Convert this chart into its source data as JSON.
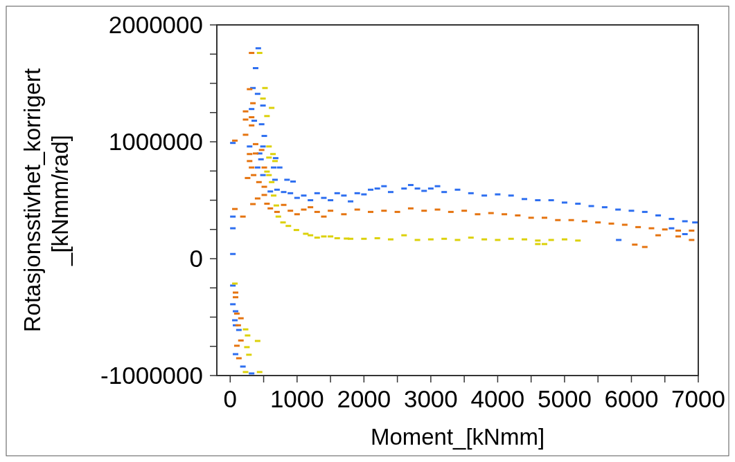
{
  "chart_data": {
    "type": "scatter",
    "xlabel": "Moment_[kNmm]",
    "ylabel": "Rotasjonsstivhet_korrigert\n_[kNmm/rad]",
    "xlim": [
      -200,
      7000
    ],
    "ylim": [
      -1000000,
      2000000
    ],
    "xticks": [
      0,
      {
        "value": 500,
        "label": null
      },
      1000,
      {
        "value": 1500,
        "label": null
      },
      2000,
      {
        "value": 2500,
        "label": null
      },
      3000,
      {
        "value": 3500,
        "label": null
      },
      4000,
      {
        "value": 4500,
        "label": null
      },
      5000,
      {
        "value": 5500,
        "label": null
      },
      6000,
      {
        "value": 6500,
        "label": null
      },
      7000
    ],
    "yticks": [
      -1000000,
      {
        "value": -750000,
        "label": null
      },
      {
        "value": -500000,
        "label": null
      },
      {
        "value": -250000,
        "label": null
      },
      0,
      {
        "value": 250000,
        "label": null
      },
      {
        "value": 500000,
        "label": null
      },
      {
        "value": 750000,
        "label": null
      },
      1000000,
      {
        "value": 1250000,
        "label": null
      },
      {
        "value": 1500000,
        "label": null
      },
      {
        "value": 1750000,
        "label": null
      },
      2000000
    ],
    "grid": false,
    "legend": false,
    "series": [
      {
        "color": "#2e6ff0",
        "x": [
          420,
          380,
          340,
          410,
          490,
          320,
          360,
          470,
          510,
          40,
          290,
          490,
          440,
          460,
          680,
          410,
          650,
          740,
          490,
          670,
          850,
          940,
          40,
          40,
          40,
          40,
          40,
          80,
          70,
          80,
          130,
          80,
          190,
          320,
          600,
          700,
          800,
          900,
          1000,
          1100,
          1200,
          1300,
          1400,
          1500,
          1600,
          1700,
          1800,
          1900,
          2000,
          2100,
          2200,
          2300,
          2400,
          2600,
          2700,
          2800,
          2900,
          3000,
          3100,
          3200,
          3400,
          3600,
          3800,
          4000,
          4200,
          4400,
          4600,
          4800,
          5000,
          5200,
          5400,
          5600,
          5800,
          6000,
          6200,
          6400,
          6600,
          6800,
          6950,
          6600,
          6800,
          5810
        ],
        "values": [
          1800000,
          1630000,
          1460000,
          1410000,
          1310000,
          1280000,
          1180000,
          1150000,
          1050000,
          990000,
          960000,
          960000,
          900000,
          850000,
          860000,
          780000,
          780000,
          780000,
          715000,
          675000,
          675000,
          660000,
          360000,
          260000,
          40000,
          -230000,
          -390000,
          -450000,
          -527000,
          -570000,
          -610000,
          -817000,
          -923000,
          -982000,
          575000,
          590000,
          570000,
          560000,
          520000,
          540000,
          500000,
          560000,
          520000,
          500000,
          560000,
          540000,
          490000,
          560000,
          550000,
          590000,
          600000,
          620000,
          570000,
          600000,
          630000,
          600000,
          580000,
          600000,
          620000,
          570000,
          590000,
          560000,
          540000,
          550000,
          540000,
          510000,
          500000,
          500000,
          480000,
          470000,
          450000,
          440000,
          420000,
          410000,
          400000,
          370000,
          340000,
          320000,
          310000,
          260000,
          210000,
          160000
        ]
      },
      {
        "color": "#e57410",
        "x": [
          320,
          290,
          340,
          230,
          230,
          320,
          320,
          230,
          70,
          380,
          290,
          470,
          380,
          290,
          320,
          510,
          350,
          260,
          430,
          510,
          510,
          410,
          340,
          70,
          190,
          80,
          80,
          100,
          160,
          120,
          160,
          100,
          130,
          550,
          600,
          700,
          800,
          900,
          1000,
          1100,
          1200,
          1300,
          1400,
          1500,
          1700,
          1900,
          2100,
          2300,
          2500,
          2700,
          2900,
          3100,
          3300,
          3500,
          3700,
          3900,
          4100,
          4300,
          4500,
          4700,
          4900,
          5100,
          5300,
          5500,
          5700,
          5900,
          6100,
          6300,
          6500,
          6700,
          6900,
          6400,
          6700,
          6900,
          6050,
          6200
        ],
        "values": [
          1760000,
          1450000,
          1330000,
          1260000,
          1190000,
          1210000,
          1140000,
          1060000,
          1010000,
          980000,
          895000,
          930000,
          900000,
          835000,
          780000,
          780000,
          715000,
          690000,
          655000,
          615000,
          545000,
          515000,
          467000,
          425000,
          360000,
          -290000,
          -330000,
          -470000,
          -510000,
          -570000,
          -700000,
          -745000,
          -852000,
          470000,
          430000,
          400000,
          460000,
          410000,
          380000,
          420000,
          440000,
          400000,
          360000,
          410000,
          380000,
          420000,
          400000,
          410000,
          400000,
          430000,
          410000,
          420000,
          400000,
          410000,
          380000,
          390000,
          380000,
          370000,
          350000,
          350000,
          330000,
          330000,
          320000,
          310000,
          300000,
          290000,
          270000,
          260000,
          250000,
          240000,
          240000,
          200000,
          190000,
          160000,
          120000,
          100000
        ]
      },
      {
        "color": "#dcd10a",
        "x": [
          440,
          520,
          490,
          620,
          550,
          580,
          640,
          580,
          670,
          550,
          580,
          620,
          650,
          690,
          720,
          790,
          870,
          990,
          1130,
          1400,
          1740,
          70,
          230,
          260,
          410,
          250,
          280,
          230,
          440,
          1200,
          1300,
          1500,
          1600,
          1800,
          2000,
          2200,
          2400,
          2600,
          2800,
          3000,
          3200,
          3400,
          3600,
          3800,
          4000,
          4200,
          4400,
          4600,
          4800,
          5000,
          5200,
          4600,
          4700
        ],
        "values": [
          1760000,
          1460000,
          1370000,
          1290000,
          1220000,
          960000,
          895000,
          865000,
          835000,
          745000,
          715000,
          655000,
          540000,
          455000,
          360000,
          310000,
          280000,
          245000,
          213000,
          190000,
          172000,
          -213000,
          -605000,
          -657000,
          -704000,
          -757000,
          -822000,
          -970000,
          -970000,
          200000,
          180000,
          190000,
          175000,
          170000,
          170000,
          175000,
          165000,
          200000,
          160000,
          165000,
          170000,
          160000,
          180000,
          165000,
          160000,
          170000,
          165000,
          155000,
          160000,
          165000,
          155000,
          125000,
          125000
        ]
      }
    ]
  }
}
